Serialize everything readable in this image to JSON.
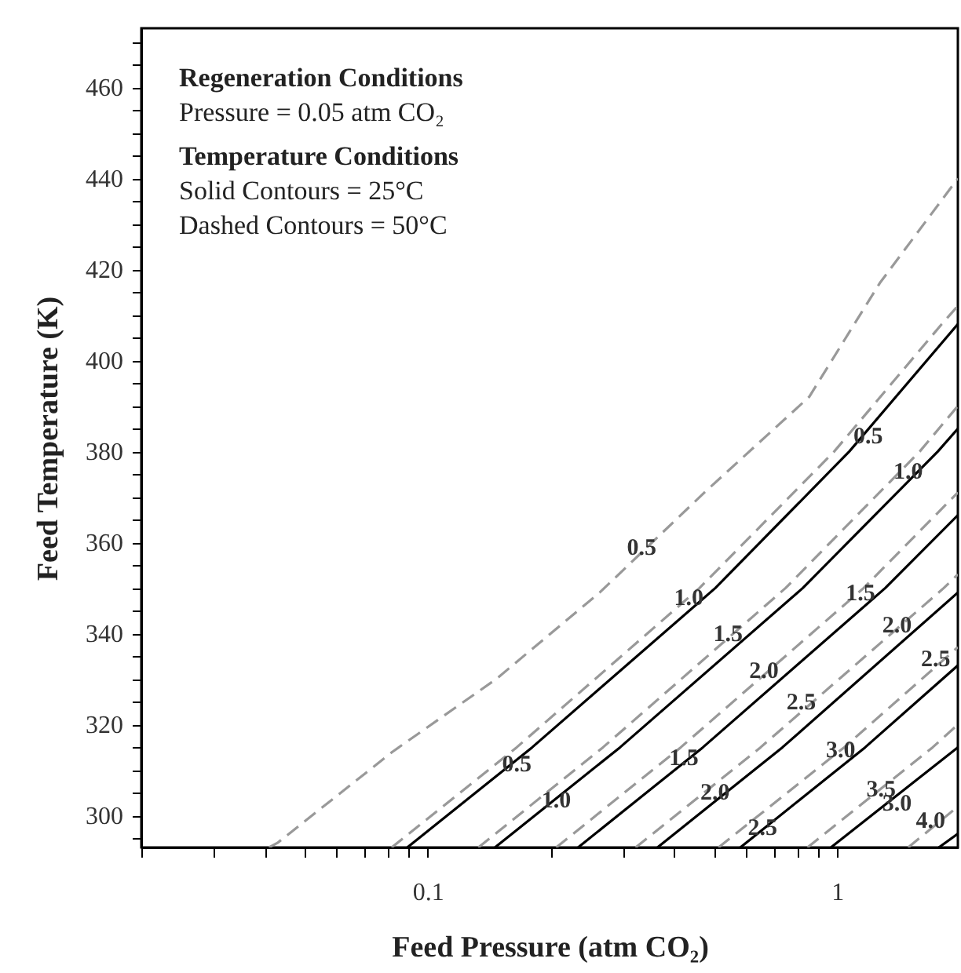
{
  "chart_data": {
    "type": "line",
    "xlabel": "Feed Pressure (atm CO₂)",
    "ylabel": "Feed Temperature (K)",
    "log": "x",
    "grid": false,
    "xlim": [
      0.02,
      1.97
    ],
    "xticks": [
      {
        "value": 0.02,
        "label": null
      },
      {
        "value": 0.03,
        "label": null
      },
      {
        "value": 0.04,
        "label": null
      },
      {
        "value": 0.05,
        "label": null
      },
      {
        "value": 0.06,
        "label": null
      },
      {
        "value": 0.07,
        "label": null
      },
      {
        "value": 0.08,
        "label": null
      },
      {
        "value": 0.09,
        "label": null
      },
      0.1,
      {
        "value": 0.2,
        "label": null
      },
      {
        "value": 0.3,
        "label": null
      },
      {
        "value": 0.4,
        "label": null
      },
      {
        "value": 0.5,
        "label": null
      },
      {
        "value": 0.6,
        "label": null
      },
      {
        "value": 0.7,
        "label": null
      },
      {
        "value": 0.8,
        "label": null
      },
      {
        "value": 0.9,
        "label": null
      },
      1
    ],
    "ylim": [
      293,
      473
    ],
    "yticks": [
      {
        "value": 295,
        "label": null
      },
      300,
      {
        "value": 305,
        "label": null
      },
      {
        "value": 310,
        "label": null
      },
      {
        "value": 315,
        "label": null
      },
      320,
      {
        "value": 325,
        "label": null
      },
      {
        "value": 330,
        "label": null
      },
      {
        "value": 335,
        "label": null
      },
      340,
      {
        "value": 345,
        "label": null
      },
      {
        "value": 350,
        "label": null
      },
      {
        "value": 355,
        "label": null
      },
      360,
      {
        "value": 365,
        "label": null
      },
      {
        "value": 370,
        "label": null
      },
      {
        "value": 375,
        "label": null
      },
      380,
      {
        "value": 385,
        "label": null
      },
      {
        "value": 390,
        "label": null
      },
      {
        "value": 395,
        "label": null
      },
      400,
      {
        "value": 405,
        "label": null
      },
      {
        "value": 410,
        "label": null
      },
      {
        "value": 415,
        "label": null
      },
      420,
      {
        "value": 425,
        "label": null
      },
      {
        "value": 430,
        "label": null
      },
      {
        "value": 435,
        "label": null
      },
      440,
      {
        "value": 445,
        "label": null
      },
      {
        "value": 450,
        "label": null
      },
      {
        "value": 455,
        "label": null
      },
      460,
      {
        "value": 465,
        "label": null
      },
      {
        "value": 470,
        "label": null
      }
    ],
    "series": [
      {
        "color": "#999999",
        "line_style": "dashed",
        "x": [
          0.041,
          0.043,
          0.082,
          0.147,
          0.263,
          0.474,
          0.854,
          1.27,
          1.97
        ],
        "values": [
          293,
          294,
          314,
          330,
          349,
          371,
          392,
          417,
          440
        ]
      },
      {
        "color": "#999999",
        "line_style": "dashed",
        "x": [
          0.0817,
          0.165,
          0.461,
          0.983,
          1.8,
          1.97
        ],
        "values": [
          293,
          315,
          350,
          380,
          408,
          412
        ]
      },
      {
        "color": "#000000",
        "line_style": "solid",
        "x": [
          0.0892,
          0.18,
          0.504,
          1.07,
          1.97
        ],
        "values": [
          293,
          315,
          350,
          380,
          408
        ]
      },
      {
        "color": "#999999",
        "line_style": "dashed",
        "x": [
          0.133,
          0.268,
          0.748,
          1.59,
          1.97
        ],
        "values": [
          293,
          315,
          350,
          380,
          390
        ]
      },
      {
        "color": "#000000",
        "line_style": "solid",
        "x": [
          0.146,
          0.295,
          0.824,
          1.76,
          1.97
        ],
        "values": [
          293,
          315,
          350,
          380,
          385
        ]
      },
      {
        "color": "#999999",
        "line_style": "dashed",
        "x": [
          0.206,
          0.415,
          1.16,
          1.97
        ],
        "values": [
          293,
          315,
          350,
          371
        ]
      },
      {
        "color": "#000000",
        "line_style": "solid",
        "x": [
          0.233,
          0.47,
          1.31,
          1.97
        ],
        "values": [
          293,
          315,
          350,
          366
        ]
      },
      {
        "color": "#999999",
        "line_style": "dashed",
        "x": [
          0.322,
          0.65,
          1.82,
          1.97
        ],
        "values": [
          293,
          315,
          350,
          353
        ]
      },
      {
        "color": "#000000",
        "line_style": "solid",
        "x": [
          0.364,
          0.735,
          1.97
        ],
        "values": [
          293,
          315,
          349
        ]
      },
      {
        "color": "#999999",
        "line_style": "dashed",
        "x": [
          0.513,
          1.04,
          1.97
        ],
        "values": [
          293,
          315,
          337
        ]
      },
      {
        "color": "#000000",
        "line_style": "solid",
        "x": [
          0.58,
          1.17,
          1.97
        ],
        "values": [
          293,
          315,
          333
        ]
      },
      {
        "color": "#999999",
        "line_style": "dashed",
        "x": [
          0.846,
          1.71,
          1.97
        ],
        "values": [
          293,
          315,
          320
        ]
      },
      {
        "color": "#000000",
        "line_style": "solid",
        "x": [
          0.965,
          1.97
        ],
        "values": [
          293,
          315
        ]
      },
      {
        "color": "#999999",
        "line_style": "dashed",
        "x": [
          1.49,
          1.97
        ],
        "values": [
          293,
          302
        ]
      },
      {
        "color": "#000000",
        "line_style": "solid",
        "x": [
          1.77,
          1.97
        ],
        "values": [
          293,
          296
        ]
      }
    ],
    "annotations": [
      "Regeneration Conditions",
      "Pressure = 0.05 atm CO₂",
      "Temperature Conditions",
      "Solid Contours = 25°C",
      "Dashed Contours = 50°C",
      {
        "text": "0.5",
        "x": 0.333,
        "y": 359
      },
      {
        "text": "1.0",
        "x": 0.434,
        "y": 348
      },
      {
        "text": "1.5",
        "x": 0.541,
        "y": 340
      },
      {
        "text": "2.0",
        "x": 0.662,
        "y": 332
      },
      {
        "text": "2.5",
        "x": 0.817,
        "y": 325
      },
      {
        "text": "3.0",
        "x": 1.02,
        "y": 314.5
      },
      {
        "text": "3.5",
        "x": 1.28,
        "y": 306
      },
      {
        "text": "4.0",
        "x": 1.69,
        "y": 299
      },
      {
        "text": "0.5",
        "x": 0.165,
        "y": 311.5
      },
      {
        "text": "1.0",
        "x": 0.206,
        "y": 303.6
      },
      {
        "text": "1.5",
        "x": 0.422,
        "y": 312.9
      },
      {
        "text": "2.0",
        "x": 0.503,
        "y": 305.3
      },
      {
        "text": "2.5",
        "x": 0.657,
        "y": 297.4
      },
      {
        "text": "3.0",
        "x": 1.4,
        "y": 302.9
      },
      {
        "text": "0.5",
        "x": 1.19,
        "y": 383.6
      },
      {
        "text": "1.0",
        "x": 1.49,
        "y": 375.7
      },
      {
        "text": "1.5",
        "x": 1.14,
        "y": 349
      },
      {
        "text": "2.0",
        "x": 1.4,
        "y": 342
      },
      {
        "text": "2.5",
        "x": 1.74,
        "y": 334.5
      }
    ]
  }
}
